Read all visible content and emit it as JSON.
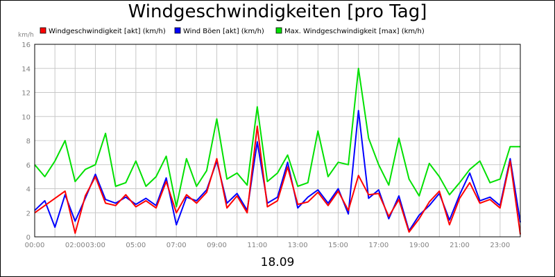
{
  "chart_data": {
    "type": "line",
    "title": "Windgeschwindigkeiten [pro Tag]",
    "ylabel": "km/h",
    "xlabel": "18.09",
    "ylim": [
      0,
      16
    ],
    "xlim_hours": [
      0,
      24
    ],
    "yticks": [
      "0",
      "2",
      "4",
      "6",
      "8",
      "10",
      "12",
      "14",
      "16"
    ],
    "xtick_labels": [
      "00:00",
      "02:00",
      "03:00",
      "05:00",
      "07:00",
      "09:00",
      "11:00",
      "13:00",
      "15:00",
      "17:00",
      "19:00",
      "21:00",
      "23:00"
    ],
    "xtick_hours": [
      0,
      2,
      3,
      5,
      7,
      9,
      11,
      13,
      15,
      17,
      19,
      21,
      23
    ],
    "grid": true,
    "legend_position": "top",
    "x": [
      0,
      0.5,
      1,
      1.5,
      2,
      2.5,
      3,
      3.5,
      4,
      4.5,
      5,
      5.5,
      6,
      6.5,
      7,
      7.5,
      8,
      8.5,
      9,
      9.5,
      10,
      10.5,
      11,
      11.5,
      12,
      12.5,
      13,
      13.5,
      14,
      14.5,
      15,
      15.5,
      16,
      16.5,
      17,
      17.5,
      18,
      18.5,
      19,
      19.5,
      20,
      20.5,
      21,
      21.5,
      22,
      22.5,
      23,
      23.5,
      24
    ],
    "series": [
      {
        "name": "Windgeschwindigkeit [akt] (km/h)",
        "color": "#ff0000",
        "values": [
          2.0,
          2.6,
          3.2,
          3.8,
          0.3,
          3.4,
          5.0,
          2.8,
          2.6,
          3.5,
          2.5,
          3.0,
          2.4,
          4.6,
          2.0,
          3.5,
          2.8,
          3.7,
          6.5,
          2.4,
          3.4,
          2.0,
          9.2,
          2.5,
          3.0,
          5.8,
          2.7,
          2.9,
          3.7,
          2.6,
          3.8,
          2.2,
          5.1,
          3.5,
          3.6,
          1.7,
          3.1,
          0.4,
          1.5,
          2.9,
          3.8,
          1.0,
          3.2,
          4.5,
          2.8,
          3.1,
          2.4,
          6.3,
          0.2
        ]
      },
      {
        "name": "Wind Böen [akt] (km/h)",
        "color": "#0000ff",
        "values": [
          2.2,
          3.0,
          0.8,
          3.5,
          1.3,
          3.2,
          5.2,
          3.1,
          2.8,
          3.3,
          2.7,
          3.2,
          2.6,
          4.9,
          1.0,
          3.3,
          3.0,
          3.9,
          6.3,
          2.8,
          3.6,
          2.2,
          7.9,
          2.8,
          3.3,
          6.2,
          2.4,
          3.3,
          3.9,
          2.8,
          4.0,
          1.9,
          10.5,
          3.2,
          3.9,
          1.5,
          3.4,
          0.5,
          1.8,
          2.6,
          3.6,
          1.4,
          3.5,
          5.3,
          3.0,
          3.3,
          2.6,
          6.5,
          1.2
        ]
      },
      {
        "name": "Max. Windgeschwindigkeit [max] (km/h)",
        "color": "#00e000",
        "values": [
          6.0,
          5.0,
          6.3,
          8.0,
          4.6,
          5.6,
          6.0,
          8.6,
          4.2,
          4.5,
          6.3,
          4.2,
          5.0,
          6.7,
          2.5,
          6.5,
          4.2,
          5.5,
          9.8,
          4.8,
          5.3,
          4.3,
          10.8,
          4.6,
          5.3,
          6.8,
          4.2,
          4.5,
          8.8,
          5.0,
          6.2,
          6.0,
          14.0,
          8.2,
          6.0,
          4.3,
          8.2,
          4.8,
          3.4,
          6.1,
          5.0,
          3.5,
          4.5,
          5.6,
          6.3,
          4.5,
          4.8,
          7.5,
          7.5
        ]
      }
    ]
  }
}
